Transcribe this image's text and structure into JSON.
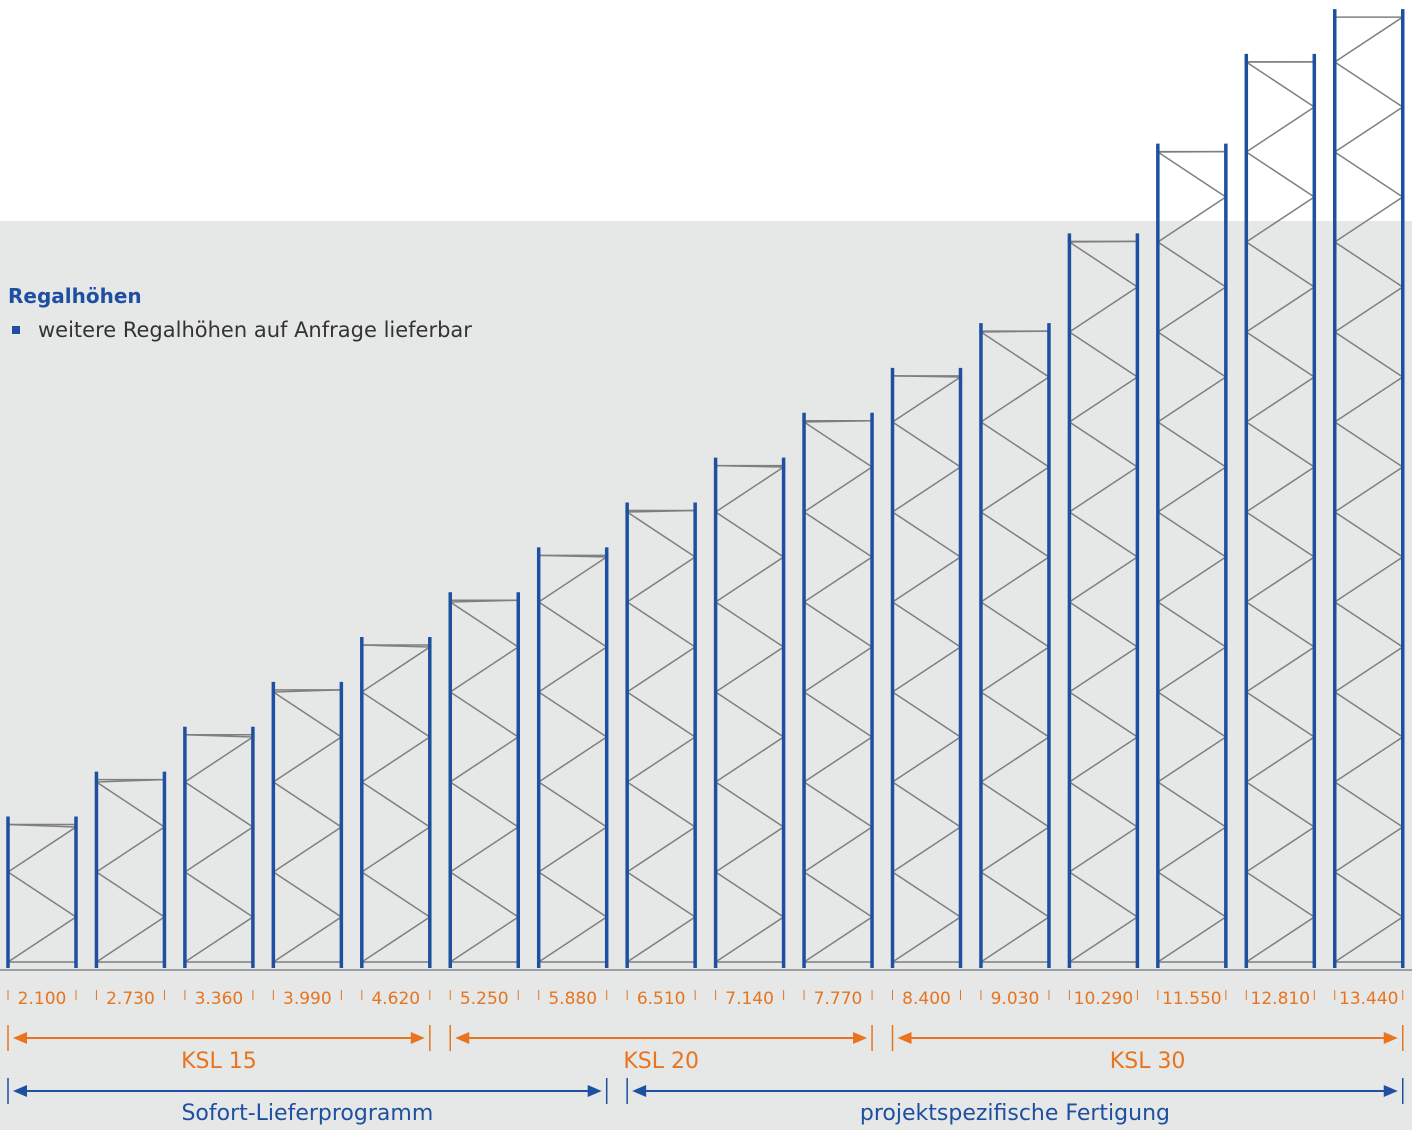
{
  "title": "Regalhöhen",
  "bullet": "weitere Regalhöhen auf Anfrage lieferbar",
  "colors": {
    "upright": "#1e4fa0",
    "bracing": "#7f7f7f",
    "orange": "#e8741e",
    "blue": "#1e4fa0",
    "panel": "#e6e7e7"
  },
  "heights": [
    "2.100",
    "2.730",
    "3.360",
    "3.990",
    "4.620",
    "5.250",
    "5.880",
    "6.510",
    "7.140",
    "7.770",
    "8.400",
    "9.030",
    "10.290",
    "11.550",
    "12.810",
    "13.440"
  ],
  "height_values_mm": [
    2100,
    2730,
    3360,
    3990,
    4620,
    5250,
    5880,
    6510,
    7140,
    7770,
    8400,
    9030,
    10290,
    11550,
    12810,
    13440
  ],
  "series_groups": [
    {
      "label": "KSL 15",
      "from": 0,
      "to": 4
    },
    {
      "label": "KSL 20",
      "from": 5,
      "to": 9
    },
    {
      "label": "KSL 30",
      "from": 10,
      "to": 15
    }
  ],
  "program_groups": [
    {
      "label": "Sofort-Lieferprogramm",
      "from": 0,
      "to": 6
    },
    {
      "label": "projektspezifische Fertigung",
      "from": 7,
      "to": 15
    }
  ]
}
